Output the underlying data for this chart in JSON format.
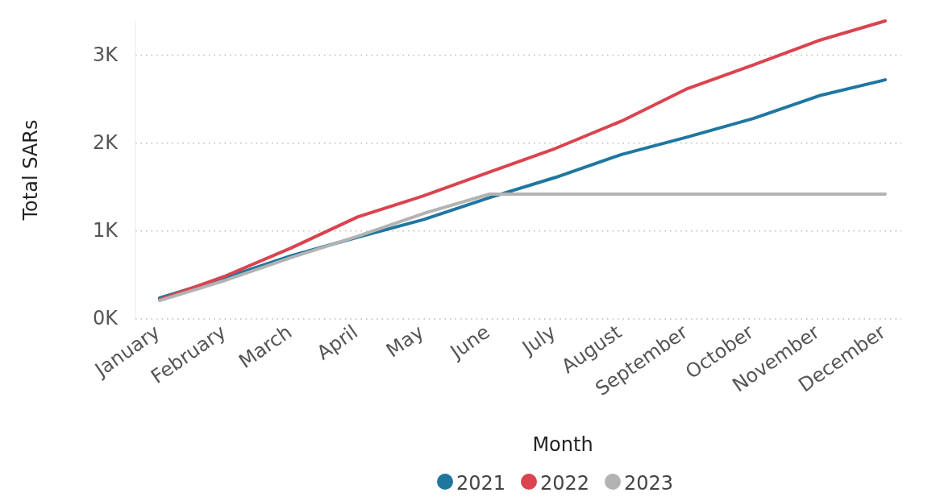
{
  "chart_data": {
    "type": "line",
    "xlabel": "Month",
    "ylabel": "Total SARs",
    "categories": [
      "January",
      "February",
      "March",
      "April",
      "May",
      "June",
      "July",
      "August",
      "September",
      "October",
      "November",
      "December"
    ],
    "series": [
      {
        "name": "2021",
        "color": "#1f77a0",
        "values": [
          240,
          470,
          720,
          930,
          1130,
          1380,
          1610,
          1870,
          2070,
          2280,
          2540,
          2720
        ]
      },
      {
        "name": "2022",
        "color": "#d9444f",
        "values": [
          220,
          490,
          810,
          1160,
          1400,
          1670,
          1940,
          2250,
          2620,
          2890,
          3170,
          3390
        ]
      },
      {
        "name": "2023",
        "color": "#b3b3b3",
        "values": [
          210,
          440,
          700,
          940,
          1200,
          1420,
          1420,
          1420,
          1420,
          1420,
          1420,
          1420
        ]
      }
    ],
    "ylim": [
      0,
      3390
    ],
    "yticks": [
      {
        "value": 0,
        "label": "0K"
      },
      {
        "value": 1000,
        "label": "1K"
      },
      {
        "value": 2000,
        "label": "2K"
      },
      {
        "value": 3000,
        "label": "3K"
      }
    ],
    "grid": "y",
    "legend": "bottom",
    "marker": "none",
    "line_style": "solid"
  }
}
